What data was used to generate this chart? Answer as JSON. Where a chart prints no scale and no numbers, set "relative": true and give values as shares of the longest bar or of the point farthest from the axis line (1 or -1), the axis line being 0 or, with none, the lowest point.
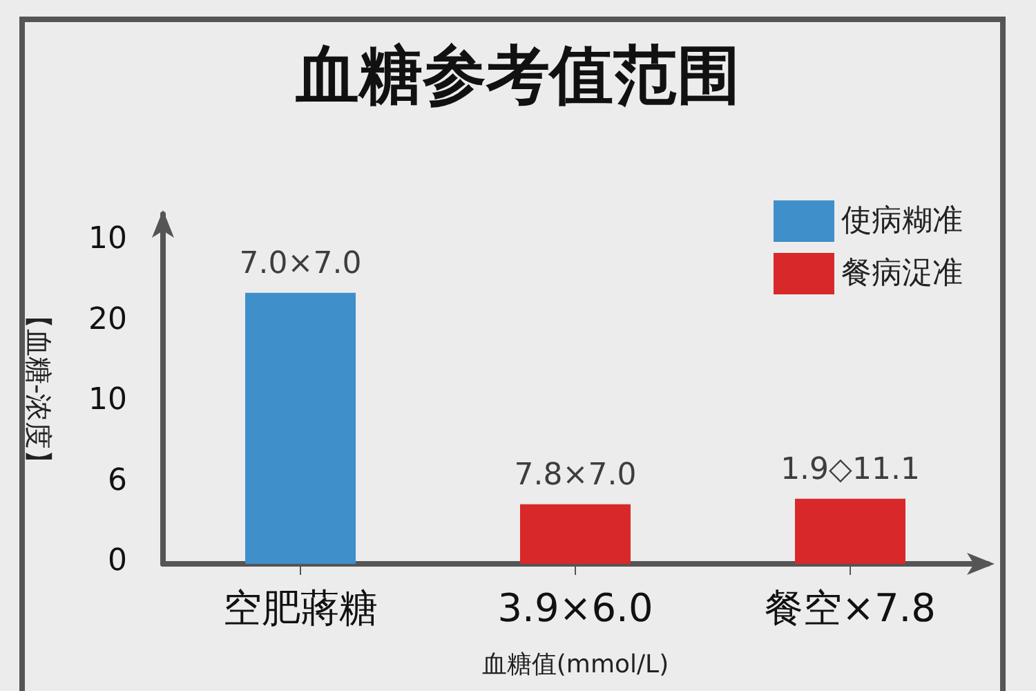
{
  "chart_data": {
    "type": "bar",
    "title": "血糖参考值范围",
    "xlabel": "血糖值(mmol/L)",
    "ylabel": "【血糖-浓度】",
    "categories": [
      "空肥蔣糖",
      "3.9×6.0",
      "餐空×7.8"
    ],
    "series": [
      {
        "name": "使病糊准",
        "color": "#3f8fcb",
        "values": [
          1,
          null,
          null
        ]
      },
      {
        "name": "餐病浞准",
        "color": "#d9282a",
        "values": [
          null,
          0.22,
          0.24
        ]
      }
    ],
    "relative": true,
    "annotations": [
      "0",
      "6",
      "10",
      "20",
      "10",
      {
        "text": "7.0×7.0",
        "x": "空肥蔣糖",
        "y": 1
      },
      {
        "text": "7.8×7.0",
        "x": "3.9×6.0",
        "y": 0.22
      },
      {
        "text": "1.9◇11.1",
        "x": "餐空×7.8",
        "y": 0.24
      }
    ],
    "grid": false,
    "legend": "top right"
  }
}
